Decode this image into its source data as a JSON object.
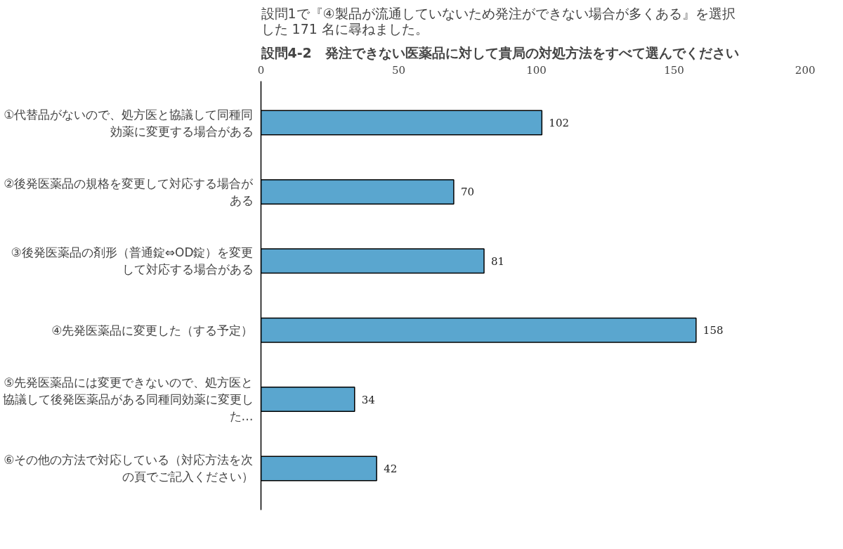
{
  "chart_data": {
    "type": "bar",
    "orientation": "horizontal",
    "title": "設問4-2　発注できない医薬品に対して貴局の対処方法をすべて選んでください",
    "subtitle": "設問1で『④製品が流通していないため発注ができない場合が多くある』を選択した 171 名に尋ねました。",
    "categories": [
      "①代替品がないので、処方医と協議して同種同効薬に変更する場合がある",
      "②後発医薬品の規格を変更して対応する場合がある",
      "③後発医薬品の剤形（普通錠⇔OD錠）を変更して対応する場合がある",
      "④先発医薬品に変更した（する予定）",
      "⑤先発医薬品には変更できないので、処方医と協議して後発医薬品がある同種同効薬に変更した…",
      "⑥その他の方法で対応している（対応方法を次の頁でご記入ください）"
    ],
    "values": [
      102,
      70,
      81,
      158,
      34,
      42
    ],
    "color": "#5aa6cf",
    "xlim": [
      0,
      200
    ],
    "xticks": [
      0,
      50,
      100,
      150,
      200
    ],
    "grid": false,
    "data_labels": true
  }
}
